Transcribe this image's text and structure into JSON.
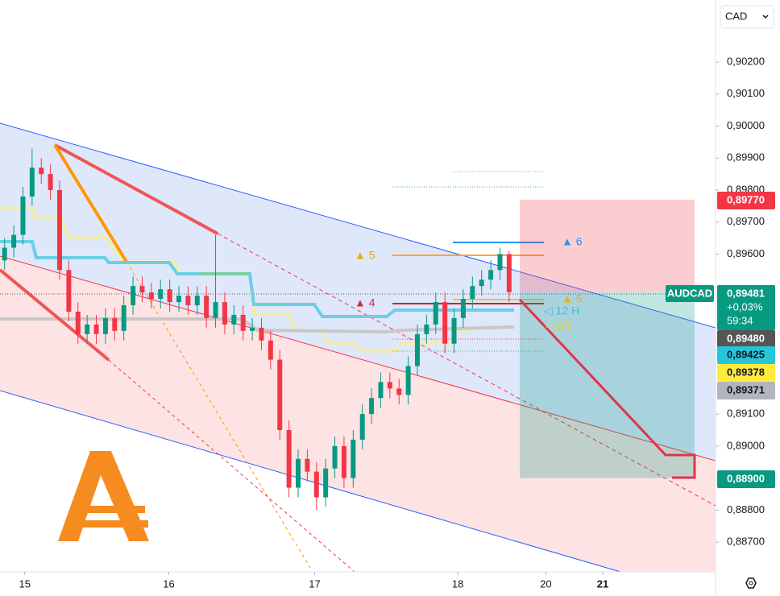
{
  "chart_data": {
    "type": "candlestick",
    "currency": "CAD",
    "up_color": "#089981",
    "down_color": "#f23645",
    "grid": false,
    "xlim": [
      0,
      78
    ],
    "ylim": [
      0.88607,
      0.90394
    ],
    "xticks": [
      {
        "value": 2.7,
        "label": "15"
      },
      {
        "value": 18.4,
        "label": "16"
      },
      {
        "value": 34.3,
        "label": "17"
      },
      {
        "value": 49.9,
        "label": "18"
      },
      {
        "value": 59.5,
        "label": "20"
      },
      {
        "value": 65.7,
        "label": "21"
      }
    ],
    "yticks": [
      {
        "value": 0.902,
        "label": "0,90200"
      },
      {
        "value": 0.901,
        "label": "0,90100"
      },
      {
        "value": 0.9,
        "label": "0,90000"
      },
      {
        "value": 0.899,
        "label": "0,89900"
      },
      {
        "value": 0.898,
        "label": "0,89800"
      },
      {
        "value": 0.897,
        "label": "0,89700"
      },
      {
        "value": 0.896,
        "label": "0,89600"
      },
      {
        "value": 0.891,
        "label": "0,89100"
      },
      {
        "value": 0.89,
        "label": "0,89000"
      },
      {
        "value": 0.888,
        "label": "0,88800"
      },
      {
        "value": 0.887,
        "label": "0,88700"
      }
    ],
    "x": [
      0.5,
      1.5,
      2.5,
      3.5,
      4.5,
      5.5,
      6.5,
      7.5,
      8.5,
      9.5,
      10.5,
      11.5,
      12.5,
      13.5,
      14.5,
      15.5,
      16.5,
      17.5,
      18.5,
      19.5,
      20.5,
      21.5,
      22.5,
      23.5,
      24.5,
      25.5,
      26.5,
      27.5,
      28.5,
      29.5,
      30.5,
      31.5,
      32.5,
      33.5,
      34.5,
      35.5,
      36.5,
      37.5,
      38.5,
      39.5,
      40.5,
      41.5,
      42.5,
      43.5,
      44.5,
      45.5,
      46.5,
      47.5,
      48.5,
      49.5,
      50.5,
      51.5,
      52.5,
      53.5,
      54.5,
      55.5
    ],
    "open": [
      0.8958,
      0.8962,
      0.8966,
      0.8978,
      0.8987,
      0.8985,
      0.898,
      0.8955,
      0.8942,
      0.8935,
      0.8938,
      0.8935,
      0.894,
      0.8936,
      0.8944,
      0.895,
      0.8948,
      0.8946,
      0.8949,
      0.8945,
      0.8947,
      0.8944,
      0.8947,
      0.894,
      0.8945,
      0.8938,
      0.8941,
      0.8936,
      0.8937,
      0.8933,
      0.8927,
      0.8905,
      0.8887,
      0.8896,
      0.8892,
      0.8884,
      0.8893,
      0.89,
      0.889,
      0.8902,
      0.891,
      0.8915,
      0.892,
      0.8918,
      0.8916,
      0.8925,
      0.8935,
      0.8938,
      0.8945,
      0.8932,
      0.894,
      0.8946,
      0.895,
      0.8952,
      0.8955,
      0.896
    ],
    "high": [
      0.8965,
      0.8969,
      0.8981,
      0.8993,
      0.899,
      0.8988,
      0.8983,
      0.8958,
      0.8945,
      0.8941,
      0.8941,
      0.8943,
      0.8943,
      0.8947,
      0.8953,
      0.8953,
      0.8951,
      0.8952,
      0.8952,
      0.895,
      0.895,
      0.895,
      0.895,
      0.8966,
      0.8948,
      0.8944,
      0.8944,
      0.894,
      0.894,
      0.8936,
      0.893,
      0.8908,
      0.8899,
      0.8899,
      0.8895,
      0.8896,
      0.8903,
      0.8903,
      0.8905,
      0.8913,
      0.8918,
      0.8923,
      0.8923,
      0.8921,
      0.8928,
      0.8938,
      0.8941,
      0.8948,
      0.8948,
      0.8943,
      0.8949,
      0.8953,
      0.8955,
      0.8958,
      0.8962,
      0.8961
    ],
    "low": [
      0.8955,
      0.8959,
      0.8963,
      0.8975,
      0.8982,
      0.8977,
      0.8952,
      0.8939,
      0.8932,
      0.8932,
      0.8932,
      0.8932,
      0.8933,
      0.8933,
      0.8941,
      0.8945,
      0.8943,
      0.8943,
      0.8942,
      0.8942,
      0.8941,
      0.8941,
      0.8937,
      0.8937,
      0.8935,
      0.8935,
      0.8933,
      0.8933,
      0.893,
      0.8924,
      0.8902,
      0.8884,
      0.8884,
      0.8889,
      0.888,
      0.8881,
      0.889,
      0.8887,
      0.8887,
      0.8899,
      0.8907,
      0.8912,
      0.8915,
      0.8913,
      0.8913,
      0.8922,
      0.8932,
      0.8935,
      0.8929,
      0.8929,
      0.8937,
      0.8943,
      0.8947,
      0.8949,
      0.8952,
      0.8945
    ],
    "close": [
      0.8962,
      0.8966,
      0.8978,
      0.8987,
      0.8985,
      0.898,
      0.8955,
      0.8942,
      0.8935,
      0.8938,
      0.8935,
      0.894,
      0.8936,
      0.8944,
      0.895,
      0.8948,
      0.8946,
      0.8949,
      0.8945,
      0.8947,
      0.8944,
      0.8947,
      0.894,
      0.8945,
      0.8938,
      0.8941,
      0.8936,
      0.8937,
      0.8933,
      0.8927,
      0.8905,
      0.8887,
      0.8896,
      0.8892,
      0.8884,
      0.8893,
      0.89,
      0.889,
      0.8902,
      0.891,
      0.8915,
      0.892,
      0.8918,
      0.8916,
      0.8925,
      0.8935,
      0.8938,
      0.8945,
      0.8932,
      0.894,
      0.8946,
      0.895,
      0.8952,
      0.8955,
      0.896,
      0.89481
    ],
    "last_price": {
      "symbol": "AUDCAD",
      "value": 0.89481,
      "label": "0,89481",
      "change": "+0,03%",
      "countdown": "59:34",
      "color": "#089981"
    },
    "price_labels": [
      {
        "value": 0.8977,
        "label": "0,89770",
        "color": "#f23645",
        "text_color": "#ffffff"
      },
      {
        "value": 0.8948,
        "label": "0,89480",
        "color": "#555555",
        "text_color": "#ffffff"
      },
      {
        "value": 0.89425,
        "label": "0,89425",
        "color": "#26c6da",
        "text_color": "#131722"
      },
      {
        "value": 0.89378,
        "label": "0,89378",
        "color": "#ffeb3b",
        "text_color": "#131722"
      },
      {
        "value": 0.89371,
        "label": "0,89371",
        "color": "#b2b5be",
        "text_color": "#131722"
      },
      {
        "value": 0.889,
        "label": "0,88900",
        "color": "#089981",
        "text_color": "#ffffff"
      }
    ],
    "annotations": [
      "▲ 5",
      "▲ 4",
      "▲ 6",
      "▲ 5",
      "◁ 12 H",
      "◁ 63'"
    ]
  }
}
